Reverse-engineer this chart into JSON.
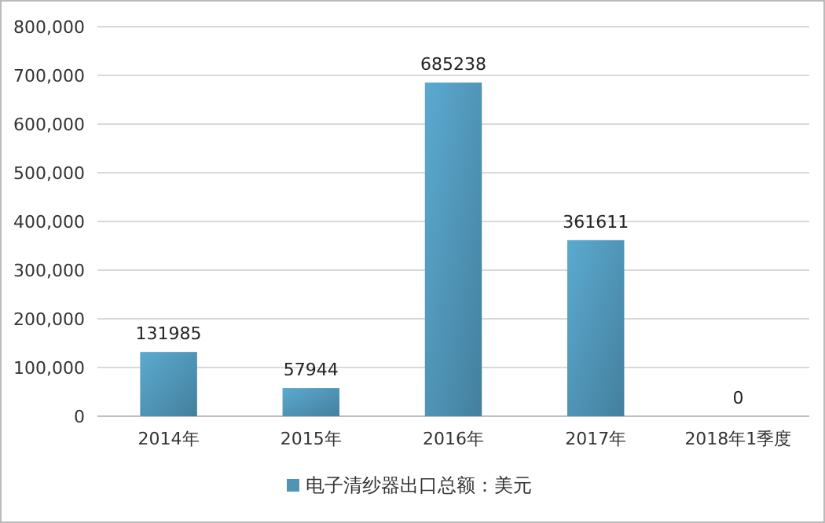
{
  "chart_data": {
    "type": "bar",
    "categories": [
      "2014年",
      "2015年",
      "2016年",
      "2017年",
      "2018年1季度"
    ],
    "series": [
      {
        "name": "电子清纱器出口总额：美元",
        "color": "#4f93b5",
        "values": [
          131985,
          57944,
          685238,
          361611,
          0
        ]
      }
    ],
    "ylim": [
      0,
      800000
    ],
    "yticks": [
      {
        "value": 0,
        "label": "0"
      },
      {
        "value": 100000,
        "label": "100,000"
      },
      {
        "value": 200000,
        "label": "200,000"
      },
      {
        "value": 300000,
        "label": "300,000"
      },
      {
        "value": 400000,
        "label": "400,000"
      },
      {
        "value": 500000,
        "label": "500,000"
      },
      {
        "value": 600000,
        "label": "600,000"
      },
      {
        "value": 700000,
        "label": "700,000"
      },
      {
        "value": 800000,
        "label": "800,000"
      }
    ],
    "grid": "y",
    "legend": "bottom",
    "data_labels": true
  }
}
